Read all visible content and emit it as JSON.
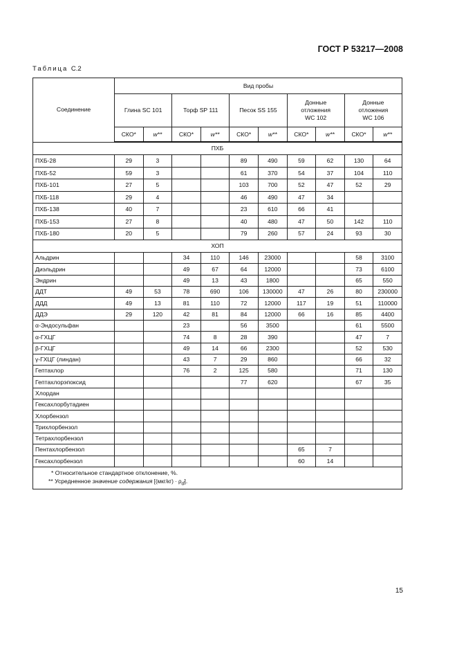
{
  "header": {
    "standard": "ГОСТ Р 53217—2008"
  },
  "caption": {
    "prefix": "Таблица",
    "number": "С.2"
  },
  "table": {
    "compound_header": "Соединение",
    "sample_type_header": "Вид пробы",
    "samples": [
      "Глина SC 101",
      "Торф SP 111",
      "Песок SS 155",
      "Донные отложения WC 102",
      "Донные отложения WC 106"
    ],
    "sub_headers": [
      "СКО*",
      "w**"
    ],
    "groups": [
      {
        "title": "ПХБ",
        "rows": [
          [
            "ПХБ-28",
            "29",
            "3",
            "",
            "",
            "89",
            "490",
            "59",
            "62",
            "130",
            "64"
          ],
          [
            "ПХБ-52",
            "59",
            "3",
            "",
            "",
            "61",
            "370",
            "54",
            "37",
            "104",
            "110"
          ],
          [
            "ПХБ-101",
            "27",
            "5",
            "",
            "",
            "103",
            "700",
            "52",
            "47",
            "52",
            "29"
          ],
          [
            "ПХБ-118",
            "29",
            "4",
            "",
            "",
            "46",
            "490",
            "47",
            "34",
            "",
            ""
          ],
          [
            "ПХБ-138",
            "40",
            "7",
            "",
            "",
            "23",
            "610",
            "66",
            "41",
            "",
            ""
          ],
          [
            "ПХБ-153",
            "27",
            "8",
            "",
            "",
            "40",
            "480",
            "47",
            "50",
            "142",
            "110"
          ],
          [
            "ПХБ-180",
            "20",
            "5",
            "",
            "",
            "79",
            "260",
            "57",
            "24",
            "93",
            "30"
          ]
        ]
      },
      {
        "title": "ХОП",
        "rows": [
          [
            "Альдрин",
            "",
            "",
            "34",
            "110",
            "146",
            "23000",
            "",
            "",
            "58",
            "3100"
          ],
          [
            "Диэльдрин",
            "",
            "",
            "49",
            "67",
            "64",
            "12000",
            "",
            "",
            "73",
            "6100"
          ],
          [
            "Эндрин",
            "",
            "",
            "49",
            "13",
            "43",
            "1800",
            "",
            "",
            "65",
            "550"
          ],
          [
            "ДДТ",
            "49",
            "53",
            "78",
            "690",
            "106",
            "130000",
            "47",
            "26",
            "80",
            "230000"
          ],
          [
            "ДДД",
            "49",
            "13",
            "81",
            "110",
            "72",
            "12000",
            "117",
            "19",
            "51",
            "110000"
          ],
          [
            "ДДЭ",
            "29",
            "120",
            "42",
            "81",
            "84",
            "12000",
            "66",
            "16",
            "85",
            "4400"
          ],
          [
            "α-Эндосульфан",
            "",
            "",
            "23",
            "",
            "56",
            "3500",
            "",
            "",
            "61",
            "5500"
          ],
          [
            "α-ГХЦГ",
            "",
            "",
            "74",
            "8",
            "28",
            "390",
            "",
            "",
            "47",
            "7"
          ],
          [
            "β-ГХЦГ",
            "",
            "",
            "49",
            "14",
            "66",
            "2300",
            "",
            "",
            "52",
            "530"
          ],
          [
            "γ-ГХЦГ (линдан)",
            "",
            "",
            "43",
            "7",
            "29",
            "860",
            "",
            "",
            "66",
            "32"
          ],
          [
            "Гептахлор",
            "",
            "",
            "76",
            "2",
            "125",
            "580",
            "",
            "",
            "71",
            "130"
          ],
          [
            "Гептахлорэпоксид",
            "",
            "",
            "",
            "",
            "77",
            "620",
            "",
            "",
            "67",
            "35"
          ],
          [
            "Хлордан",
            "",
            "",
            "",
            "",
            "",
            "",
            "",
            "",
            "",
            ""
          ],
          [
            "Гексахлорбутадиен",
            "",
            "",
            "",
            "",
            "",
            "",
            "",
            "",
            "",
            ""
          ],
          [
            "Хлорбензол",
            "",
            "",
            "",
            "",
            "",
            "",
            "",
            "",
            "",
            ""
          ],
          [
            "Трихлорбензол",
            "",
            "",
            "",
            "",
            "",
            "",
            "",
            "",
            "",
            ""
          ],
          [
            "Тетрахлорбензол",
            "",
            "",
            "",
            "",
            "",
            "",
            "",
            "",
            "",
            ""
          ],
          [
            "Пентахлорбензол",
            "",
            "",
            "",
            "",
            "",
            "",
            "65",
            "7",
            "",
            ""
          ],
          [
            "Гексахлорбензол",
            "",
            "",
            "",
            "",
            "",
            "",
            "60",
            "14",
            "",
            ""
          ]
        ]
      }
    ],
    "footnotes": {
      "note1": "* Относительное стандартное отклонение, %.",
      "note2_prefix": "** Усредненное ",
      "note2_italic": "значение содержания",
      "note2_suffix": " [(мкг/кг) · ρ",
      "note2_sub": "d",
      "note2_end": "]."
    }
  },
  "page_number": "15"
}
